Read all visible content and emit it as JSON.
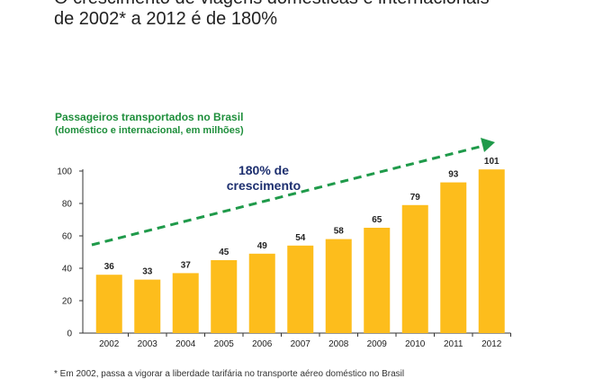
{
  "headline": {
    "line1": "O crescimento de viagens domésticas e internacionais",
    "line2": "de 2002* a 2012 é de 180%"
  },
  "footnote": "* Em 2002, passa a vigorar a liberdade tarifária no transporte aéreo doméstico no Brasil",
  "colors": {
    "bar": "#fdbd1c",
    "trend": "#1f9a4a",
    "title": "#1f8f3c",
    "annotation": "#1d2f6f",
    "axis": "#333333"
  },
  "chart_data": {
    "type": "bar",
    "title": "Passageiros transportados no Brasil",
    "subtitle": "(doméstico e internacional, em milhões)",
    "categories": [
      "2002",
      "2003",
      "2004",
      "2005",
      "2006",
      "2007",
      "2008",
      "2009",
      "2010",
      "2011",
      "2012"
    ],
    "values": [
      36,
      33,
      37,
      45,
      49,
      54,
      58,
      65,
      79,
      93,
      101
    ],
    "data_labels": [
      "36",
      "33",
      "37",
      "45",
      "49",
      "54",
      "58",
      "65",
      "79",
      "93",
      "101"
    ],
    "ylim": [
      0,
      100
    ],
    "yticks": [
      "0",
      "20",
      "40",
      "60",
      "80",
      "100"
    ],
    "grid": false,
    "legend": "none",
    "annotation": {
      "line1": "180% de",
      "line2": "crescimento",
      "style": "dashed green arrow trending upward"
    }
  }
}
